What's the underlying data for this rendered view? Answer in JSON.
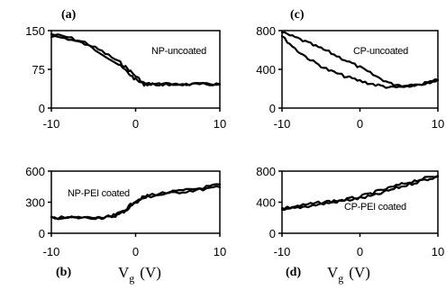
{
  "chart_data": [
    {
      "type": "line",
      "panel_label": "(a)",
      "annotation": "NP-uncoated",
      "xlim": [
        -10,
        10
      ],
      "ylim": [
        0,
        150
      ],
      "x_ticks": [
        "-10",
        "0",
        "10"
      ],
      "y_ticks": [
        "0",
        "75",
        "150"
      ],
      "series": [
        {
          "x": [
            -10,
            -8,
            -6,
            -4,
            -2,
            -1,
            0,
            1,
            2,
            4,
            6,
            8,
            10
          ],
          "y": [
            143,
            137,
            127,
            110,
            90,
            77,
            62,
            48,
            46,
            46,
            46,
            46,
            46
          ]
        },
        {
          "x": [
            -10,
            -8,
            -6,
            -4,
            -2,
            -1,
            0,
            1,
            2,
            4,
            6,
            8,
            10
          ],
          "y": [
            140,
            134,
            124,
            106,
            84,
            70,
            55,
            46,
            46,
            46,
            46,
            46,
            46
          ]
        }
      ]
    },
    {
      "type": "line",
      "panel_label": "(c)",
      "annotation": "CP-uncoated",
      "xlim": [
        -10,
        10
      ],
      "ylim": [
        0,
        800
      ],
      "x_ticks": [
        "-10",
        "0",
        "10"
      ],
      "y_ticks": [
        "0",
        "400",
        "800"
      ],
      "series": [
        {
          "x": [
            -10,
            -8,
            -6,
            -4,
            -2,
            0,
            2,
            4,
            6,
            8,
            10
          ],
          "y": [
            780,
            720,
            650,
            580,
            500,
            420,
            330,
            250,
            230,
            250,
            290
          ]
        },
        {
          "x": [
            -10,
            -8,
            -6,
            -4,
            -2,
            0,
            2,
            4,
            6,
            8,
            10
          ],
          "y": [
            740,
            590,
            480,
            390,
            330,
            280,
            240,
            210,
            220,
            250,
            290
          ]
        }
      ]
    },
    {
      "type": "line",
      "panel_label": "(b)",
      "annotation": "NP-PEI coated",
      "xlabel": "V",
      "xlabel_subscript": "g",
      "xlabel_unit": "(V)",
      "xlim": [
        -10,
        10
      ],
      "ylim": [
        0,
        600
      ],
      "x_ticks": [
        "-10",
        "0",
        "10"
      ],
      "y_ticks": [
        "0",
        "300",
        "600"
      ],
      "series": [
        {
          "x": [
            -10,
            -8,
            -6,
            -4,
            -3,
            -2,
            -1,
            0,
            1,
            2,
            4,
            6,
            8,
            10
          ],
          "y": [
            150,
            150,
            150,
            150,
            155,
            180,
            230,
            300,
            340,
            360,
            385,
            405,
            425,
            445
          ]
        },
        {
          "x": [
            -10,
            -8,
            -6,
            -4,
            -3,
            -2,
            -1,
            0,
            1,
            2,
            4,
            6,
            8,
            10
          ],
          "y": [
            150,
            150,
            150,
            150,
            160,
            190,
            245,
            315,
            350,
            375,
            395,
            415,
            440,
            470
          ]
        }
      ]
    },
    {
      "type": "line",
      "panel_label": "(d)",
      "annotation": "CP-PEI coated",
      "xlabel": "V",
      "xlabel_subscript": "g",
      "xlabel_unit": "(V)",
      "xlim": [
        -10,
        10
      ],
      "ylim": [
        0,
        800
      ],
      "x_ticks": [
        "-10",
        "0",
        "10"
      ],
      "y_ticks": [
        "0",
        "400",
        "800"
      ],
      "series": [
        {
          "x": [
            -10,
            -8,
            -6,
            -4,
            -2,
            0,
            2,
            4,
            6,
            8,
            10
          ],
          "y": [
            290,
            330,
            360,
            390,
            420,
            450,
            490,
            560,
            620,
            680,
            730
          ]
        },
        {
          "x": [
            -10,
            -8,
            -6,
            -4,
            -2,
            0,
            2,
            4,
            6,
            8,
            10
          ],
          "y": [
            320,
            350,
            380,
            410,
            430,
            470,
            530,
            590,
            650,
            700,
            740
          ]
        }
      ]
    }
  ]
}
